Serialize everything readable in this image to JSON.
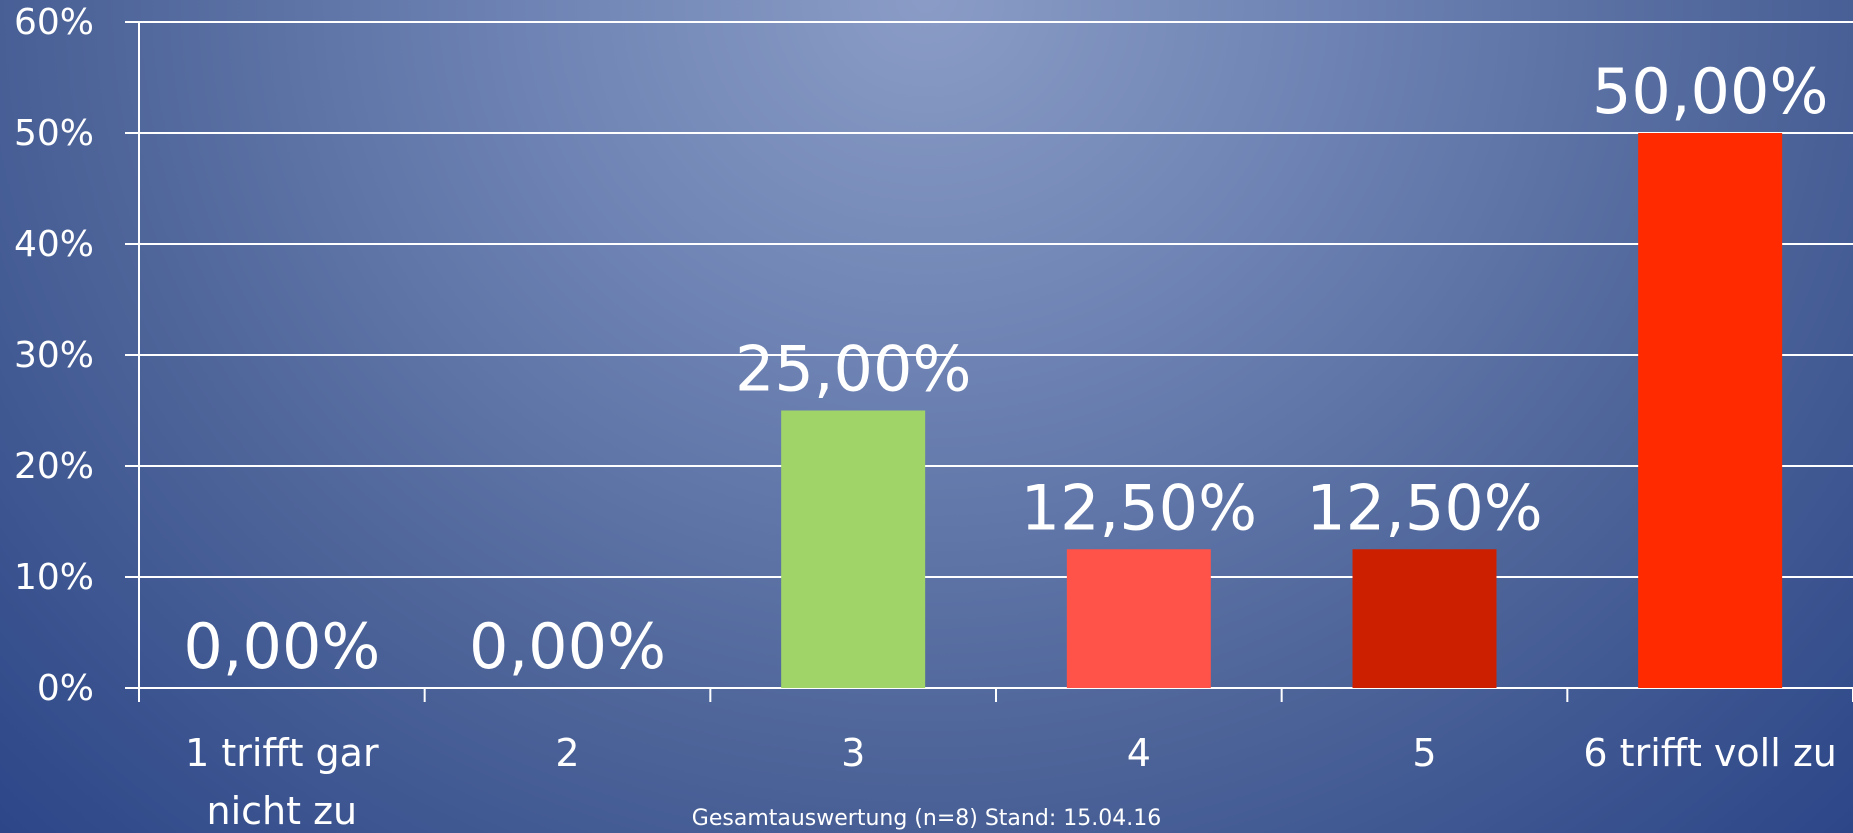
{
  "chart_data": {
    "type": "bar",
    "categories": [
      "1 trifft gar nicht zu",
      "2",
      "3",
      "4",
      "5",
      "6 trifft voll zu"
    ],
    "category_lines": [
      [
        "1 trifft gar",
        "nicht zu"
      ],
      [
        "2"
      ],
      [
        "3"
      ],
      [
        "4"
      ],
      [
        "5"
      ],
      [
        "6 trifft voll zu"
      ]
    ],
    "values": [
      0,
      0,
      25,
      12.5,
      12.5,
      50
    ],
    "data_labels": [
      "0,00%",
      "0,00%",
      "25,00%",
      "12,50%",
      "12,50%",
      "50,00%"
    ],
    "bar_colors": [
      "#a0d468",
      "#a0d468",
      "#a0d468",
      "#ff5249",
      "#cc1f00",
      "#ff2a00"
    ],
    "ylim": [
      0,
      60
    ],
    "yticks": [
      0,
      10,
      20,
      30,
      40,
      50,
      60
    ],
    "ytick_labels": [
      "0%",
      "10%",
      "20%",
      "30%",
      "40%",
      "50%",
      "60%"
    ],
    "grid": true
  },
  "footnote": "Gesamtauswertung (n=8) Stand: 15.04.16"
}
